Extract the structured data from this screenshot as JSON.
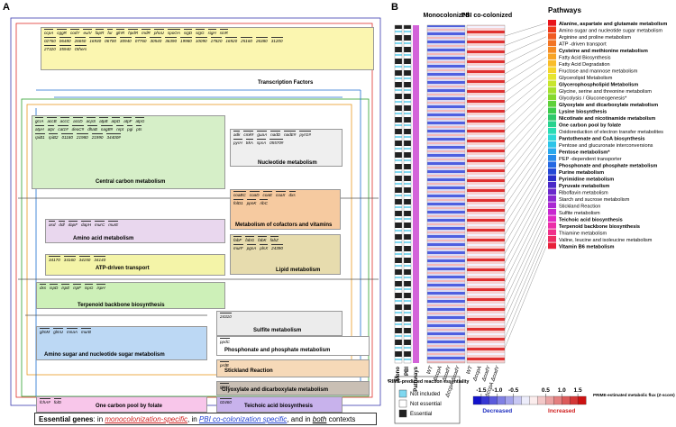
{
  "panel_a": {
    "label": "A",
    "modules": [
      {
        "name": "Transcription Factors",
        "rows": [
          [
            "ccpA",
            "cggR",
            "codY",
            "euiV",
            "fapR",
            "fur",
            "glnR",
            "hpdR",
            "mdR",
            "phoU",
            "spoOA",
            "sigD",
            "sigG",
            "sigH",
            "sinR"
          ],
          [
            "02760",
            "06480",
            "26650",
            "16930",
            "06700",
            "30940",
            "07760",
            "30540",
            "36390",
            "19980",
            "10090",
            "17820",
            "16920",
            "25160",
            "26380",
            "31200"
          ],
          [
            "27320",
            "35940",
            "Others"
          ]
        ]
      },
      {
        "name": "Central carbon metabolism",
        "rows": [
          [
            "gcrA",
            "accB",
            "accC",
            "accD",
            "acpS",
            "atpB",
            "atpD",
            "atpF",
            "atpG"
          ],
          [
            "atpH",
            "atpI",
            "cat1#",
            "deoC#",
            "dhaB",
            "nagB#",
            "nrpt",
            "pgi",
            "pts"
          ],
          [
            "rpiB1",
            "rpiB2",
            "01180",
            "21980",
            "21990",
            "34400#"
          ]
        ]
      },
      {
        "name": "Nucleotide metabolism",
        "rows": [
          [
            "adk",
            "cmk#",
            "guaA",
            "nadD",
            "nadE#",
            "pyrG#"
          ],
          [
            "pyrH",
            "trkA",
            "spsA",
            "05570#"
          ]
        ]
      },
      {
        "name": "Metabolism of cofactors and vitamins",
        "rows": [
          [
            "coaBC",
            "coaD",
            "coaE",
            "coaX",
            "dxs"
          ],
          [
            "folD1",
            "ppnK",
            "ribC"
          ]
        ]
      },
      {
        "name": "Amino acid metabolism",
        "rows": [
          [
            "asd",
            "ddl",
            "dapF",
            "dapH",
            "murC",
            "murE"
          ]
        ]
      },
      {
        "name": "ATP-driven transport",
        "rows": [
          [
            "34170",
            "34160",
            "34150",
            "34140"
          ]
        ]
      },
      {
        "name": "Lipid metabolism",
        "rows": [
          [
            "fabF",
            "fabG",
            "fabK",
            "fabZ"
          ],
          [
            "murF",
            "pgsA",
            "plsX",
            "24390"
          ]
        ]
      },
      {
        "name": "Terpenoid backbone biosynthesis",
        "rows": [
          [
            "dxs",
            "ispD",
            "ispE",
            "ispF",
            "ispG",
            "ispH"
          ]
        ]
      },
      {
        "name": "Sulfite metabolism",
        "rows": [
          [
            "24310"
          ]
        ]
      },
      {
        "name": "Phosphonate and phosphate metabolism",
        "rows": [
          [
            "ppdC"
          ]
        ]
      },
      {
        "name": "Stickland Reaction",
        "rows": [
          [
            "prdB"
          ]
        ]
      },
      {
        "name": "Amino sugar and nucleotide sugar metabolism",
        "rows": [
          [
            "glmM",
            "glmU",
            "mnaA",
            "murB"
          ]
        ]
      },
      {
        "name": "Glyoxylate and dicarboxylate metabolism",
        "rows": [
          [
            "gcvH"
          ]
        ]
      },
      {
        "name": "One carbon pool by folate",
        "rows": [
          [
            "fchA#",
            "folD"
          ]
        ]
      },
      {
        "name": "Teichoic acid biosynthesis",
        "rows": [
          [
            "02460"
          ]
        ]
      }
    ],
    "legend": {
      "lead": "Essential genes",
      "parts": [
        ": in ",
        "monocolonization-specific",
        ", in ",
        "PBI co-colonization specific",
        ", and in ",
        "both",
        " contexts"
      ]
    }
  },
  "panel_b": {
    "label": "B",
    "groups": [
      "Monocolonized",
      "PBI co-colonized"
    ],
    "columns": [
      "WT",
      "ΔccpA",
      "ΔcodY",
      "ΔccpA ΔcodY",
      "WT",
      "ΔccpA",
      "ΔcodY",
      "ΔccpA ΔcodY"
    ],
    "side_labels": [
      "Mono",
      "PBI",
      "Pathways"
    ],
    "pathways_title": "Pathways",
    "pathways": [
      {
        "name": "Alanine, aspartate and glutamate metabolism",
        "color": "#e8141b",
        "bold": true
      },
      {
        "name": "Amino sugar and nucleotide sugar metabolism",
        "color": "#ee3a1c",
        "bold": false
      },
      {
        "name": "Arginine and proline metabolism",
        "color": "#f05a22",
        "bold": false
      },
      {
        "name": "ATP -driven transport",
        "color": "#f27424",
        "bold": false
      },
      {
        "name": "Cysteine and methionine metabolism",
        "color": "#f58c25",
        "bold": true
      },
      {
        "name": "Fatty Acid Biosynthesis",
        "color": "#f7a427",
        "bold": false
      },
      {
        "name": "Fatty Acid Degradation",
        "color": "#f9bd2a",
        "bold": false
      },
      {
        "name": "Fructose and mannose metabolism",
        "color": "#f5d52c",
        "bold": false
      },
      {
        "name": "Glycerolipid Metabolism",
        "color": "#e6e52e",
        "bold": false
      },
      {
        "name": "Glycerophospholipid Metabolism",
        "color": "#c8e62e",
        "bold": true
      },
      {
        "name": "Glycine, serine and threonine metabolism",
        "color": "#a6e02e",
        "bold": false
      },
      {
        "name": "Glycolysis / Gluconeogenesis*",
        "color": "#84d82e",
        "bold": false
      },
      {
        "name": "Glyoxylate and dicarboxylate metabolism",
        "color": "#5ed13a",
        "bold": true
      },
      {
        "name": "Lysine biosynthesis",
        "color": "#3ccc4c",
        "bold": true
      },
      {
        "name": "Nicotinate and nicotinamide metabolism",
        "color": "#2ec86a",
        "bold": true
      },
      {
        "name": "One carbon pool by folate",
        "color": "#28d28e",
        "bold": true
      },
      {
        "name": "Oxidoreduction of electron transfer metabolites",
        "color": "#2adcb4",
        "bold": false
      },
      {
        "name": "Pantothenate and CoA biosynthesis",
        "color": "#2ed8d8",
        "bold": true
      },
      {
        "name": "Pentose and glucuronate interconversions",
        "color": "#2cc4e8",
        "bold": false
      },
      {
        "name": "Pentose metabolism*",
        "color": "#28a8ec",
        "bold": true
      },
      {
        "name": "PEP -dependent transporter",
        "color": "#268aea",
        "bold": false
      },
      {
        "name": "Phosphonate and phosphate metabolism",
        "color": "#2468e2",
        "bold": true
      },
      {
        "name": "Purine metabolism",
        "color": "#2448d6",
        "bold": true
      },
      {
        "name": "Pyrimidine metabolism",
        "color": "#2a2ec8",
        "bold": true
      },
      {
        "name": "Pyruvate metabolism",
        "color": "#4a28c8",
        "bold": true
      },
      {
        "name": "Riboflavin metabolism",
        "color": "#6a28cc",
        "bold": false
      },
      {
        "name": "Starch and sucrose metabolism",
        "color": "#8a28d0",
        "bold": false
      },
      {
        "name": "Stickland Reaction",
        "color": "#aa28d2",
        "bold": false
      },
      {
        "name": "Sulfite metabolism",
        "color": "#c828d0",
        "bold": false
      },
      {
        "name": "Teichoic acid biosynthesis",
        "color": "#e02ac4",
        "bold": true
      },
      {
        "name": "Terpenoid backbone biosynthesis",
        "color": "#ec2ea8",
        "bold": true
      },
      {
        "name": "Thiamine metabolism",
        "color": "#f0308a",
        "bold": false
      },
      {
        "name": "Valine, leucine and isoleucine metabolism",
        "color": "#ee2c62",
        "bold": false
      },
      {
        "name": "Vitamin B6 metabolism",
        "color": "#e8203a",
        "bold": true
      }
    ],
    "essentiality_legend": {
      "title": "PRIME-predicted reaction essentiality",
      "items": [
        {
          "label": "Not included",
          "color": "#7fd8f0"
        },
        {
          "label": "Not essential",
          "color": "#ffffff"
        },
        {
          "label": "Essential",
          "color": "#222222"
        }
      ]
    },
    "flux_legend": {
      "title": "PRIME-estimated metabolic flux (Z-score)",
      "decreased": "Decreased",
      "increased": "Increased",
      "ticks": [
        -1.5,
        {
          "value": -1,
          "label": "-1.0"
        },
        -0.5,
        0.5,
        {
          "value": 1,
          "label": "1.0"
        },
        1.5
      ],
      "lim": [
        -1.75,
        1.75
      ]
    }
  }
}
